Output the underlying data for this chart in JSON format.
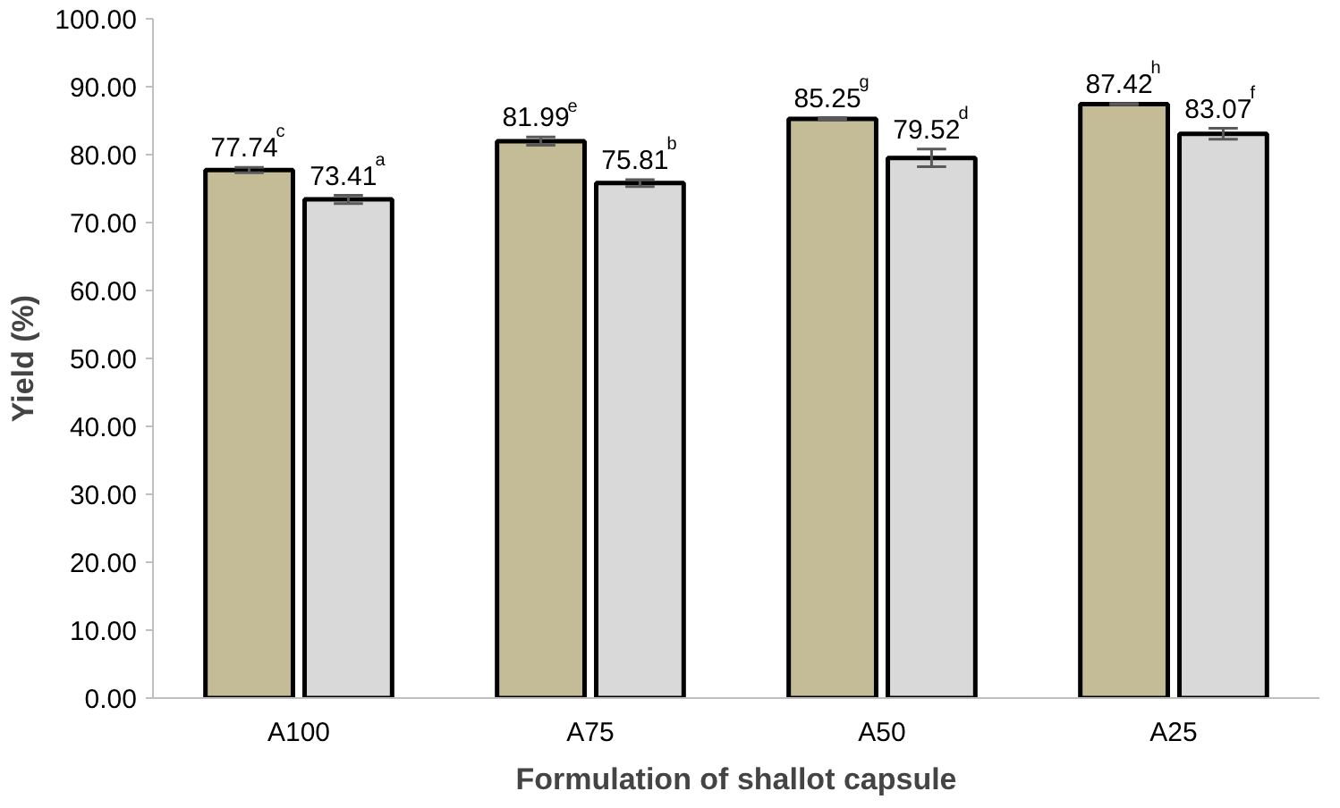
{
  "chart_data": {
    "type": "bar",
    "xlabel": "Formulation of shallot capsule",
    "ylabel": "Yield (%)",
    "categories": [
      "A100",
      "A75",
      "A50",
      "A25"
    ],
    "series": [
      {
        "color": "#c4bc96",
        "values": [
          77.74,
          81.99,
          85.25,
          87.42
        ],
        "errors": [
          0.4,
          0.6,
          0.2,
          0.1
        ],
        "value_labels": [
          "77.74$^{c}$",
          "81.99$^{e}$",
          "85.25$^{g}$",
          "87.42$^{h}$"
        ]
      },
      {
        "color": "#d9d9d9",
        "values": [
          73.41,
          75.81,
          79.52,
          83.07
        ],
        "errors": [
          0.6,
          0.5,
          1.3,
          0.8
        ],
        "value_labels": [
          "73.41$^{a}$",
          "75.81$^{b}$",
          "79.52$^{d}$",
          "83.07$^{f}$"
        ]
      }
    ],
    "ylim": [
      0,
      100
    ],
    "yticks": [
      {
        "value": 0,
        "label": "0.00"
      },
      {
        "value": 10,
        "label": "10.00"
      },
      {
        "value": 20,
        "label": "20.00"
      },
      {
        "value": 30,
        "label": "30.00"
      },
      {
        "value": 40,
        "label": "40.00"
      },
      {
        "value": 50,
        "label": "50.00"
      },
      {
        "value": 60,
        "label": "60.00"
      },
      {
        "value": 70,
        "label": "70.00"
      },
      {
        "value": 80,
        "label": "80.00"
      },
      {
        "value": 90,
        "label": "90.00"
      },
      {
        "value": 100,
        "label": "100.00"
      }
    ],
    "grid": false
  }
}
